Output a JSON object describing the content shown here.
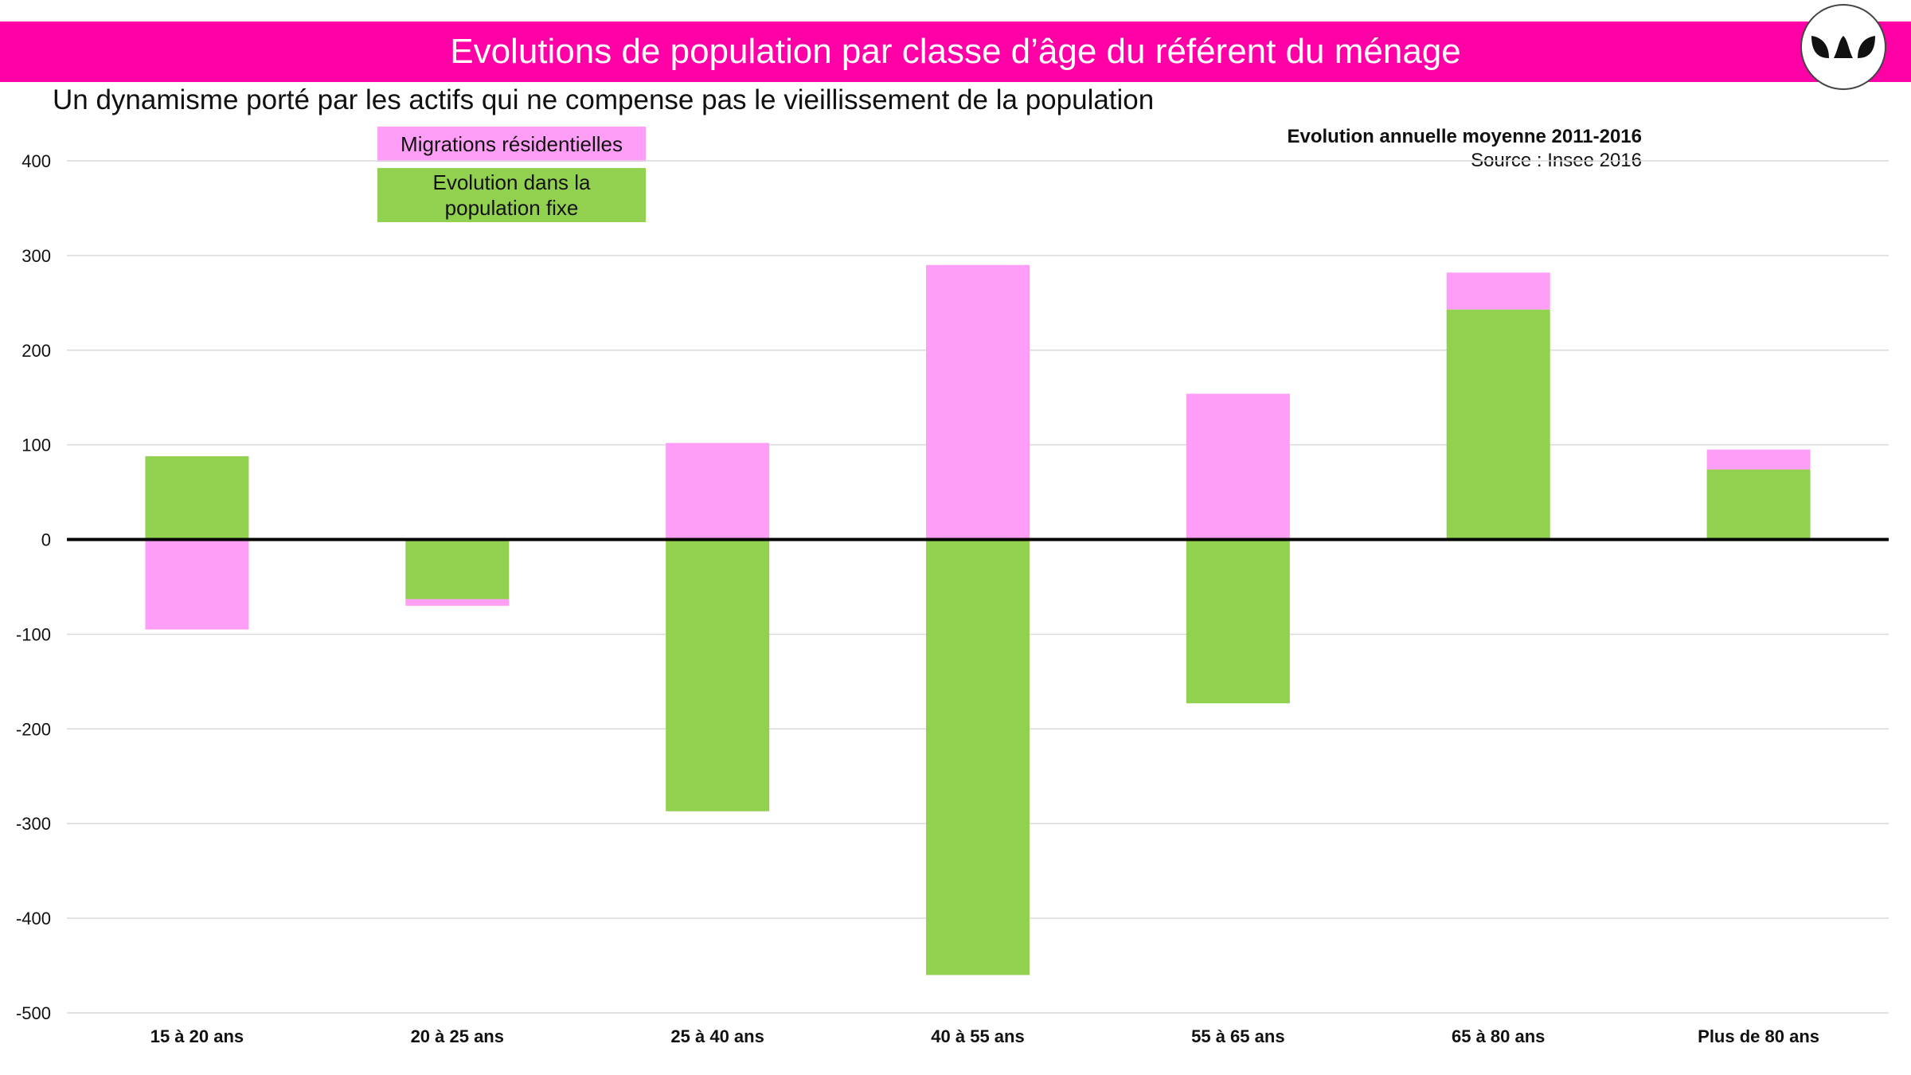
{
  "header": {
    "title": "Evolutions de population par classe d’âge du référent du ménage",
    "subtitle": "Un dynamisme porté par les actifs qui ne compense pas le vieillissement de la population",
    "note_period": "Evolution annuelle moyenne 2011-2016",
    "note_source": "Source : Insee 2016",
    "logo_icon": "leaves-logo-icon"
  },
  "colors": {
    "banner": "#ff00a6",
    "migrations": "#ff9ef7",
    "population_fixe": "#92d050",
    "zero_line": "#000000",
    "grid": "#d9d9d9"
  },
  "chart_data": {
    "type": "bar",
    "stacking": "diverging",
    "categories": [
      "15 à 20 ans",
      "20 à 25 ans",
      "25 à 40 ans",
      "40 à 55 ans",
      "55 à 65 ans",
      "65 à 80 ans",
      "Plus de 80 ans"
    ],
    "series": [
      {
        "name": "Migrations résidentielles",
        "values": [
          -95,
          -7,
          102,
          290,
          154,
          39,
          21
        ]
      },
      {
        "name": "Evolution dans la\npopulation fixe",
        "values": [
          88,
          -63,
          -287,
          -460,
          -173,
          243,
          74
        ]
      }
    ],
    "ylim": [
      -500,
      400
    ],
    "yticks": [
      400,
      300,
      200,
      100,
      0,
      -100,
      -200,
      -300,
      -400,
      -500
    ],
    "grid": true,
    "legend_position": "top-left"
  }
}
